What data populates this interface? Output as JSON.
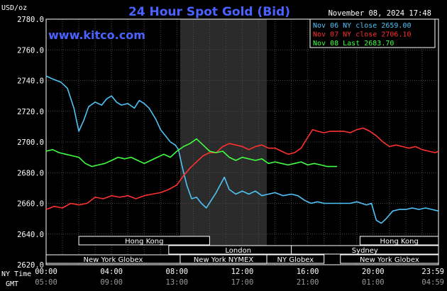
{
  "chart_data": {
    "type": "line",
    "title": "24 Hour Spot Gold (Bid)",
    "site": "www.kitco.com",
    "date_stamp": "November 08, 2024 17:48",
    "y_unit": "USD/oz",
    "ylim": [
      2620,
      2780
    ],
    "y_ticks": [
      "2780.0",
      "2760.0",
      "2740.0",
      "2720.0",
      "2700.0",
      "2680.0",
      "2660.0",
      "2640.0",
      "2620.0"
    ],
    "y_tick_values": [
      2780,
      2760,
      2740,
      2720,
      2700,
      2680,
      2660,
      2640,
      2620
    ],
    "x_ny_label": "NY Time",
    "x_gmt_label": "GMT",
    "x_ticks_ny": [
      "00:00",
      "04:00",
      "08:00",
      "12:00",
      "16:00",
      "20:00",
      "23:59"
    ],
    "x_ticks_gmt": [
      "05:00",
      "09:00",
      "13:00",
      "17:00",
      "21:00",
      "01:00",
      "04:59"
    ],
    "x_tick_hours": [
      0,
      4,
      8,
      12,
      16,
      20,
      24
    ],
    "x_range_hours": [
      0,
      24
    ],
    "grid": true,
    "legend_position": "top-right",
    "nymex_band_hours": [
      8.2,
      13.5
    ],
    "markets": [
      {
        "name": "Hong Kong",
        "start": 2.0,
        "end": 10.0,
        "row": 0
      },
      {
        "name": "Hong Kong",
        "start": 19.2,
        "end": 24.0,
        "row": 0
      },
      {
        "name": "London",
        "start": 7.5,
        "end": 16.0,
        "row": 1
      },
      {
        "name": "Sydney",
        "start": 15.0,
        "end": 24.0,
        "row": 1
      },
      {
        "name": "New York Globex",
        "start": 0.0,
        "end": 8.2,
        "row": 2
      },
      {
        "name": "New York NYMEX",
        "start": 8.2,
        "end": 13.5,
        "row": 2
      },
      {
        "name": "NY Globex",
        "start": 13.5,
        "end": 17.0,
        "row": 2
      },
      {
        "name": "New York Globex",
        "start": 18.0,
        "end": 24.0,
        "row": 2
      }
    ],
    "series": [
      {
        "name": "Nov 06 NY close 2659.00",
        "color": "#4fc3f7",
        "x": [
          0,
          0.4,
          0.9,
          1.3,
          1.7,
          1.9,
          2.0,
          2.3,
          2.6,
          3.0,
          3.4,
          3.7,
          4.0,
          4.3,
          4.6,
          5.0,
          5.4,
          5.7,
          6.0,
          6.3,
          6.7,
          7.0,
          7.3,
          7.6,
          7.9,
          8.1,
          8.3,
          8.6,
          8.9,
          9.2,
          9.5,
          9.8,
          10.1,
          10.4,
          10.6,
          10.9,
          11.2,
          11.6,
          12.0,
          12.4,
          12.8,
          13.2,
          13.6,
          14.0,
          14.5,
          15.0,
          15.4,
          15.8,
          16.2,
          16.6,
          17.0,
          17.6,
          18.2,
          18.6,
          19.0,
          19.3,
          19.6,
          19.9,
          20.2,
          20.5,
          20.8,
          21.2,
          21.6,
          22.0,
          22.4,
          22.8,
          23.2,
          23.6,
          24.0
        ],
        "y": [
          2743,
          2741,
          2739,
          2735,
          2722,
          2712,
          2707,
          2714,
          2723,
          2726,
          2724,
          2728,
          2730,
          2726,
          2724,
          2725,
          2722,
          2727,
          2725,
          2722,
          2715,
          2708,
          2704,
          2700,
          2698,
          2695,
          2685,
          2672,
          2663,
          2664,
          2660,
          2657,
          2662,
          2667,
          2671,
          2677,
          2669,
          2666,
          2668,
          2666,
          2668,
          2665,
          2666,
          2667,
          2665,
          2666,
          2665,
          2662,
          2660,
          2661,
          2660,
          2660,
          2660,
          2660,
          2661,
          2660,
          2659,
          2660,
          2649,
          2647,
          2650,
          2655,
          2656,
          2656,
          2657,
          2656,
          2657,
          2656,
          2655
        ]
      },
      {
        "name": "Nov 07 NY close 2706.10",
        "color": "#ff3030",
        "x": [
          0,
          0.5,
          1.0,
          1.5,
          2.0,
          2.5,
          3.0,
          3.5,
          4.0,
          4.5,
          5.0,
          5.5,
          6.0,
          6.5,
          7.0,
          7.5,
          8.0,
          8.4,
          8.8,
          9.2,
          9.6,
          10.0,
          10.4,
          10.8,
          11.2,
          11.6,
          12.0,
          12.4,
          12.8,
          13.2,
          13.6,
          14.0,
          14.4,
          14.8,
          15.2,
          15.6,
          16.0,
          16.3,
          16.6,
          17.0,
          17.4,
          17.8,
          18.2,
          18.6,
          19.0,
          19.4,
          19.8,
          20.2,
          20.6,
          21.0,
          21.4,
          21.8,
          22.2,
          22.6,
          23.0,
          23.4,
          23.8,
          24.0
        ],
        "y": [
          2656,
          2658,
          2657,
          2660,
          2659,
          2660,
          2664,
          2663,
          2665,
          2664,
          2665,
          2663,
          2665,
          2666,
          2667,
          2669,
          2672,
          2678,
          2683,
          2687,
          2691,
          2693,
          2693,
          2697,
          2699,
          2698,
          2697,
          2695,
          2697,
          2698,
          2696,
          2696,
          2694,
          2692,
          2693,
          2696,
          2703,
          2708,
          2707,
          2706,
          2707,
          2707,
          2707,
          2706,
          2708,
          2709,
          2707,
          2704,
          2700,
          2697,
          2698,
          2697,
          2696,
          2697,
          2695,
          2694,
          2693,
          2694
        ]
      },
      {
        "name": "Nov 08 Last 2683.70",
        "color": "#40ff40",
        "x": [
          0,
          0.4,
          0.8,
          1.2,
          1.6,
          2.0,
          2.4,
          2.8,
          3.2,
          3.6,
          4.0,
          4.4,
          4.8,
          5.2,
          5.6,
          6.0,
          6.4,
          6.8,
          7.2,
          7.6,
          8.0,
          8.4,
          8.8,
          9.2,
          9.6,
          10.0,
          10.4,
          10.8,
          11.2,
          11.6,
          12.0,
          12.4,
          12.8,
          13.2,
          13.6,
          14.0,
          14.4,
          14.8,
          15.2,
          15.6,
          16.0,
          16.4,
          16.8,
          17.2,
          17.6,
          17.8
        ],
        "y": [
          2694,
          2695,
          2693,
          2692,
          2691,
          2690,
          2686,
          2684,
          2685,
          2686,
          2688,
          2690,
          2689,
          2690,
          2688,
          2686,
          2688,
          2690,
          2692,
          2690,
          2694,
          2697,
          2699,
          2702,
          2698,
          2694,
          2693,
          2694,
          2690,
          2688,
          2690,
          2689,
          2688,
          2689,
          2686,
          2687,
          2686,
          2685,
          2686,
          2687,
          2685,
          2686,
          2685,
          2684,
          2684,
          2684
        ]
      }
    ]
  }
}
